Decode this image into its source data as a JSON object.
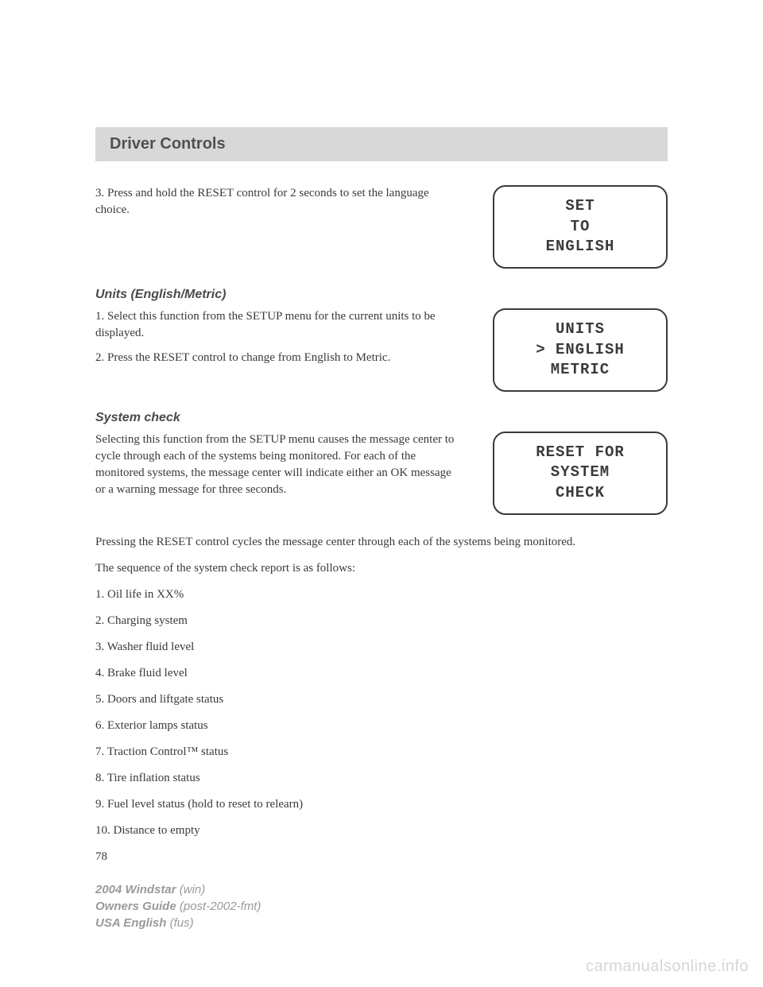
{
  "header": {
    "title": "Driver Controls"
  },
  "section1": {
    "step": "3. Press and hold the RESET control for 2 seconds to set the language choice.",
    "display": {
      "line1": "SET",
      "line2": "TO",
      "line3": "ENGLISH"
    }
  },
  "section2": {
    "title": "Units (English/Metric)",
    "step1": "1. Select this function from the SETUP menu for the current units to be displayed.",
    "step2": "2. Press the RESET control to change from English to Metric.",
    "display": {
      "line1": "UNITS",
      "line2": "> ENGLISH",
      "line3": "METRIC"
    }
  },
  "section3": {
    "title": "System check",
    "intro": "Selecting this function from the SETUP menu causes the message center to cycle through each of the systems being monitored. For each of the monitored systems, the message center will indicate either an OK message or a warning message for three seconds.",
    "display": {
      "line1": "RESET FOR",
      "line2": "SYSTEM",
      "line3": "CHECK"
    },
    "p2": "Pressing the RESET control cycles the message center through each of the systems being monitored.",
    "p3": "The sequence of the system check report is as follows:",
    "items": [
      "1. Oil life in XX%",
      "2. Charging system",
      "3. Washer fluid level",
      "4. Brake fluid level",
      "5. Doors and liftgate status",
      "6. Exterior lamps status",
      "7. Traction Control™ status",
      "8. Tire inflation status",
      "9. Fuel level status (hold to reset to relearn)",
      "10. Distance to empty"
    ]
  },
  "pageNumber": "78",
  "footer": {
    "line1a": "2004 Windstar",
    "line1b": " (win)",
    "line2a": "Owners Guide",
    "line2b": " (post-2002-fmt)",
    "line3a": "USA English",
    "line3b": " (fus)"
  },
  "watermark": "carmanualsonline.info"
}
